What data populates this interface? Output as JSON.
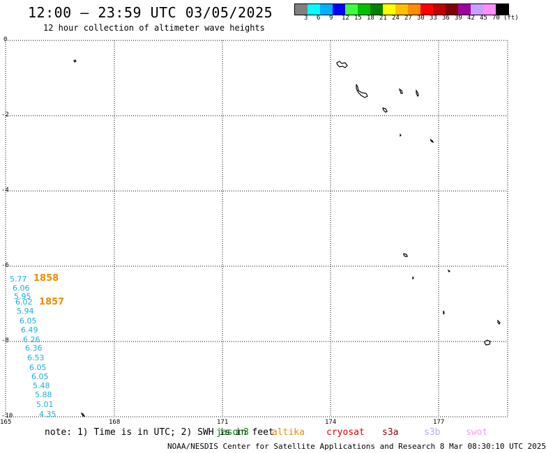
{
  "title": "12:00 – 23:59 UTC 03/05/2025",
  "subtitle": "12 hour collection of altimeter wave heights",
  "legend": {
    "colors": [
      "#808080",
      "#00ffff",
      "#00b0ff",
      "#0000ff",
      "#40ff40",
      "#00c000",
      "#008000",
      "#ffff00",
      "#ffc000",
      "#ff8c00",
      "#ff0000",
      "#c00000",
      "#800000",
      "#a000a0",
      "#c8a0ff",
      "#ff90ff",
      "#000000"
    ],
    "labels": [
      "3",
      "6",
      "9",
      "12",
      "15",
      "18",
      "21",
      "24",
      "27",
      "30",
      "33",
      "36",
      "39",
      "42",
      "45",
      "70"
    ],
    "unit": "(ft)"
  },
  "axes": {
    "x_ticks": [
      "165",
      "168",
      "171",
      "174",
      "177"
    ],
    "y_ticks": [
      "0",
      "-2",
      "-4",
      "-6",
      "-8",
      "-10"
    ]
  },
  "swh_values": [
    "5.77",
    "6.06",
    "5.95",
    "6.02",
    "5.94",
    "6.05",
    "6.49",
    "6.26",
    "6.36",
    "6.53",
    "6.05",
    "6.05",
    "5.48",
    "5.88",
    "5.01",
    "4.35"
  ],
  "pass_times": [
    "1858",
    "1857"
  ],
  "note": "note:  1) Time is in UTC; 2) SWH is in feet",
  "satellites": [
    {
      "name": "jason3",
      "color": "#008000"
    },
    {
      "name": "altika",
      "color": "#f08c00"
    },
    {
      "name": "cryosat",
      "color": "#e00000"
    },
    {
      "name": "s3a",
      "color": "#900000"
    },
    {
      "name": "s3b",
      "color": "#b8a8f0"
    },
    {
      "name": "swot",
      "color": "#f0a0f0"
    }
  ],
  "footer": "NOAA/NESDIS Center for Satellite Applications and Research    8 Mar 08:30:10 UTC 2025"
}
